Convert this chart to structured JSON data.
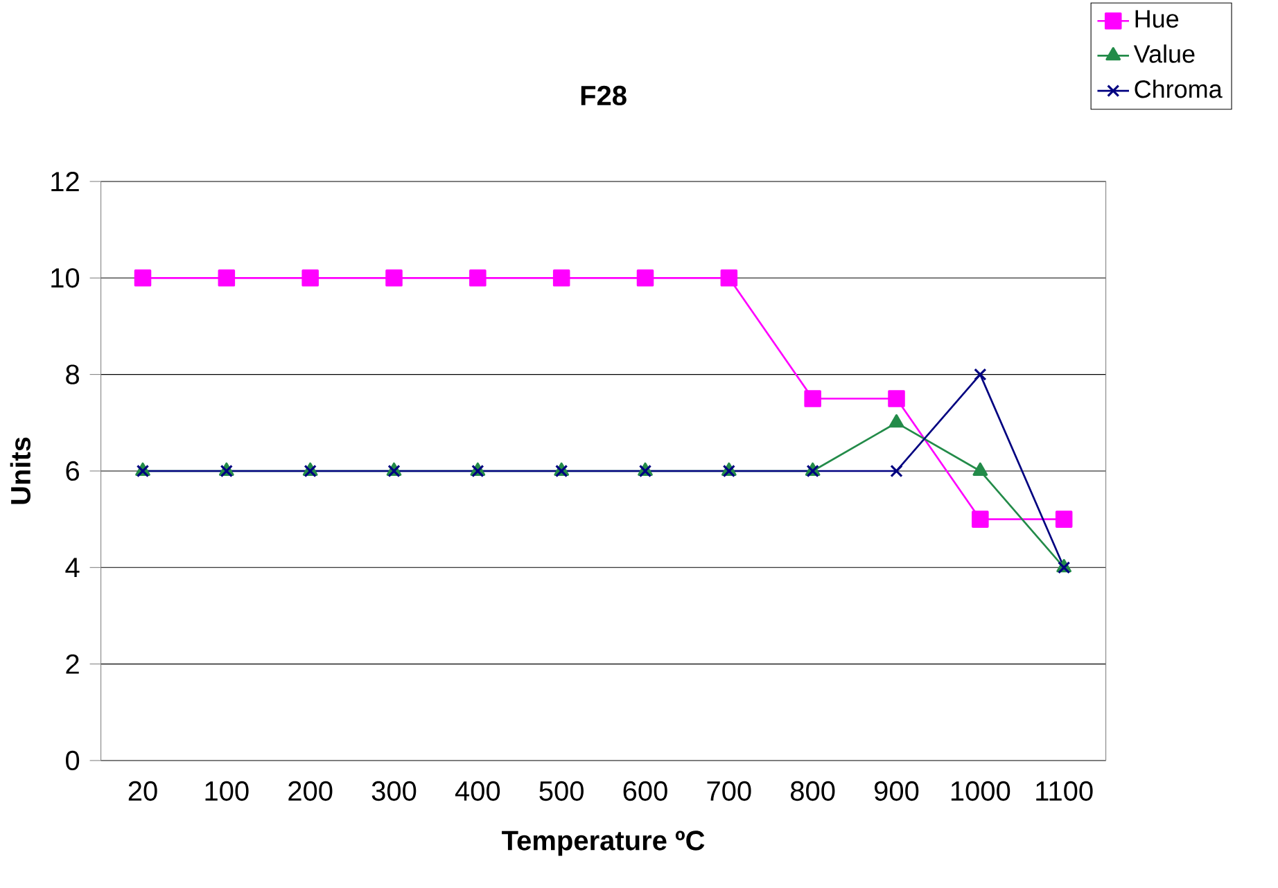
{
  "chart_data": {
    "type": "line",
    "title": "F28",
    "xlabel": "Temperature ºC",
    "ylabel": "Units",
    "categories": [
      "20",
      "100",
      "200",
      "300",
      "400",
      "500",
      "600",
      "700",
      "800",
      "900",
      "1000",
      "1100"
    ],
    "series": [
      {
        "name": "Hue",
        "color": "#ff00ff",
        "marker": "square",
        "values": [
          10,
          10,
          10,
          10,
          10,
          10,
          10,
          10,
          7.5,
          7.5,
          5,
          5
        ]
      },
      {
        "name": "Value",
        "color": "#238b49",
        "marker": "triangle",
        "values": [
          6,
          6,
          6,
          6,
          6,
          6,
          6,
          6,
          6,
          7,
          6,
          4
        ]
      },
      {
        "name": "Chroma",
        "color": "#000080",
        "marker": "cross",
        "values": [
          6,
          6,
          6,
          6,
          6,
          6,
          6,
          6,
          6,
          6,
          8,
          4
        ]
      }
    ],
    "ylim": [
      0,
      12
    ],
    "yticks": [
      0,
      2,
      4,
      6,
      8,
      10,
      12
    ],
    "grid": "y",
    "legend": "top right"
  }
}
